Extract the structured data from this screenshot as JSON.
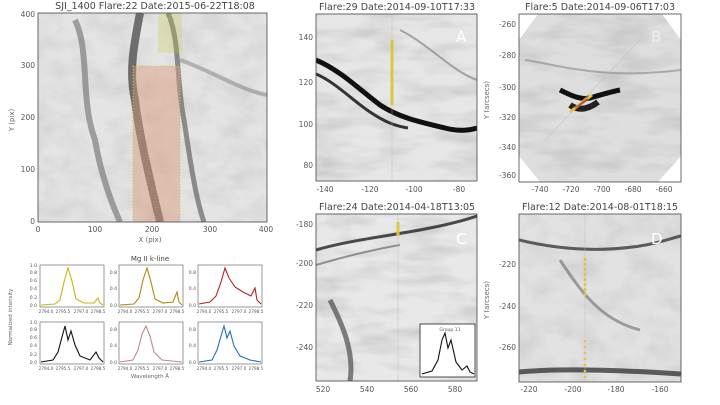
{
  "sji": {
    "title": "SJI_1400  Flare:22  Date:2015-06-22T18:08",
    "xlabel": "X (pix)",
    "ylabel": "Y (pix)",
    "xticks": [
      "0",
      "100",
      "200",
      "300",
      "400"
    ],
    "yticks": [
      "0",
      "100",
      "200",
      "300",
      "400"
    ]
  },
  "spectra": {
    "title": "Mg II k-line",
    "ylabel": "Normalized intensity",
    "xlabel": "Wavelength Å",
    "xticks_top": [
      "2794.0",
      "2795.5",
      "2797.0",
      "2798.5"
    ],
    "xticks_bottom": [
      "2794.0",
      "2795.5",
      "2797.0",
      "2798.5"
    ],
    "yticks": [
      "0.0",
      "0.2",
      "0.4",
      "0.6",
      "0.8",
      "1.0"
    ],
    "colors": [
      "#c9b80a",
      "#b8860b",
      "#b22222",
      "#111111",
      "#c08a8a",
      "#1f6fbf"
    ]
  },
  "panels": {
    "A": {
      "title": "Flare:29  Date:2014-09-10T17:33",
      "letter": "A",
      "xticks": [
        "-140",
        "-120",
        "-100",
        "-80"
      ],
      "yticks": [
        "80",
        "100",
        "120",
        "140"
      ]
    },
    "B": {
      "title": "Flare:5  Date:2014-09-06T17:03",
      "letter": "B",
      "xticks": [
        "-740",
        "-720",
        "-700",
        "-680",
        "-660"
      ],
      "yticks": [
        "-360",
        "-340",
        "-320",
        "-300",
        "-280",
        "-260"
      ],
      "ylabel": "Y (arcsecs)"
    },
    "C": {
      "title": "Flare:24  Date:2014-04-18T13:05",
      "letter": "C",
      "xticks": [
        "520",
        "540",
        "560",
        "580"
      ],
      "yticks": [
        "-240",
        "-220",
        "-200",
        "-180"
      ],
      "inset": "Group 11"
    },
    "D": {
      "title": "Flare:12  Date:2014-08-01T18:15",
      "letter": "D",
      "xticks": [
        "-220",
        "-200",
        "-180",
        "-160"
      ],
      "yticks": [
        "-260",
        "-240",
        "-220"
      ],
      "ylabel": "Y (arcsecs)"
    }
  }
}
